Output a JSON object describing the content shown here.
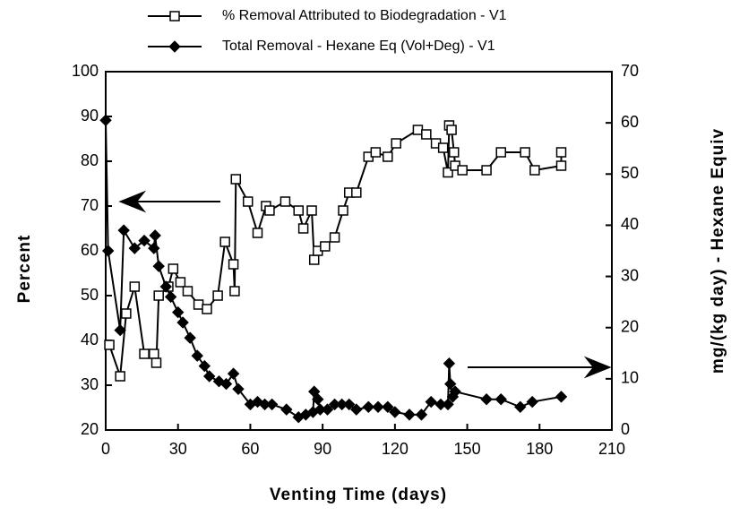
{
  "chart_data": {
    "type": "line",
    "xlabel": "Venting Time (days)",
    "ylabel": "Percent",
    "y2label": "mg/(kg day) - Hexane Equiv",
    "xlim": [
      0,
      210
    ],
    "xticks": [
      0,
      30,
      60,
      90,
      120,
      150,
      180,
      210
    ],
    "ylim": [
      20,
      100
    ],
    "yticks": [
      20,
      30,
      40,
      50,
      60,
      70,
      80,
      90,
      100
    ],
    "y2lim": [
      0,
      70
    ],
    "y2ticks": [
      0,
      10,
      20,
      30,
      40,
      50,
      60,
      70
    ],
    "series": [
      {
        "name": "% Removal Attributed to Biodegradation - V1",
        "color": "#000000",
        "marker": "square",
        "axis": "y",
        "x": [
          1.5,
          6,
          8.5,
          12,
          16,
          20,
          21,
          22,
          26,
          28,
          31,
          34,
          38.5,
          42,
          46.5,
          49.5,
          53,
          53.5,
          54,
          59,
          63,
          66.5,
          68,
          74.5,
          80,
          82,
          85.5,
          86.5,
          88,
          91,
          95,
          98.5,
          101,
          104,
          109,
          112,
          117,
          120.5,
          129.5,
          133,
          137,
          140,
          142,
          142.5,
          143.5,
          144.5,
          145,
          148,
          158,
          164,
          174,
          178,
          189,
          189
        ],
        "values": [
          39,
          32,
          46,
          52,
          37,
          37,
          35,
          50,
          52,
          56,
          53,
          51,
          48,
          47,
          50,
          62,
          57,
          51,
          76,
          71,
          64,
          70,
          69,
          71,
          69,
          65,
          69,
          58,
          60,
          61,
          63,
          69,
          73,
          73,
          81,
          82,
          81,
          84,
          87,
          86,
          84,
          83,
          77.5,
          88,
          87,
          82,
          79,
          78,
          78,
          82,
          82,
          78,
          79,
          82
        ]
      },
      {
        "name": "Total Removal - Hexane Eq (Vol+Deg) - V1",
        "color": "#000000",
        "marker": "diamond",
        "axis": "y2",
        "x": [
          0,
          1,
          6,
          7.5,
          12,
          16,
          20,
          20.5,
          22,
          25,
          27,
          30,
          32,
          35,
          38,
          41,
          43,
          47,
          50,
          53,
          55,
          60,
          63,
          66,
          69,
          75,
          80,
          83,
          86,
          86.5,
          88,
          89,
          92,
          95,
          98,
          101,
          104,
          109,
          113,
          117,
          120,
          126,
          131,
          135,
          139,
          142,
          142.5,
          143,
          144,
          145,
          158,
          164,
          172,
          177,
          189
        ],
        "values": [
          60.5,
          35,
          19.5,
          39,
          35.5,
          37,
          35.5,
          38,
          32,
          28,
          26,
          23,
          21,
          18,
          14.5,
          12.5,
          10.5,
          9.5,
          9,
          11,
          8,
          5,
          5.5,
          5,
          5,
          4,
          2.5,
          3,
          3.5,
          7.5,
          6,
          4,
          4,
          5,
          5,
          5,
          4,
          4.5,
          4.5,
          4.5,
          3.5,
          3,
          3,
          5.5,
          5,
          5,
          13,
          9,
          6.5,
          7.5,
          6,
          6,
          4.5,
          5.5,
          6.5
        ]
      }
    ]
  }
}
